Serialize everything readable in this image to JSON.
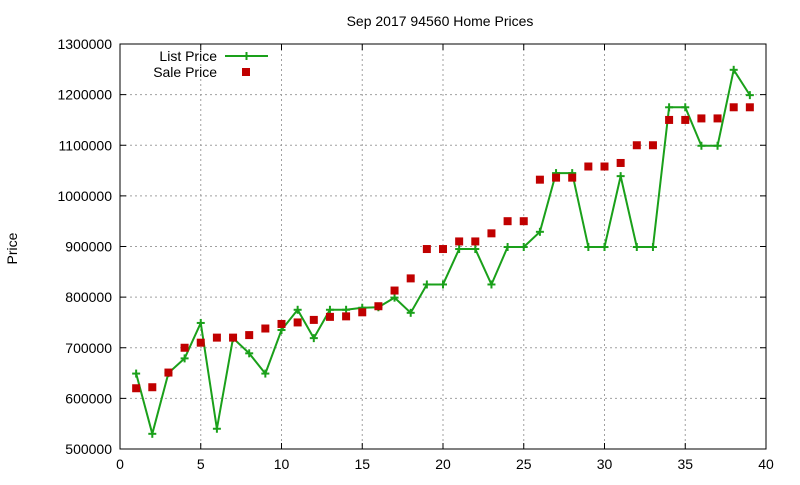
{
  "chart_data": {
    "type": "line",
    "title": "Sep 2017 94560 Home Prices",
    "xlabel": "",
    "ylabel": "Price",
    "xlim": [
      0,
      40
    ],
    "ylim": [
      500000,
      1300000
    ],
    "xticks": [
      "0",
      "5",
      "10",
      "15",
      "20",
      "25",
      "30",
      "35",
      "40"
    ],
    "yticks": [
      "500000",
      "600000",
      "700000",
      "800000",
      "900000",
      "1000000",
      "1100000",
      "1200000",
      "1300000"
    ],
    "grid": true,
    "legend_position": "top-left",
    "series": [
      {
        "name": "List Price",
        "style": "line-plus",
        "color": "#1aa01a",
        "x": [
          1,
          2,
          3,
          4,
          5,
          6,
          7,
          8,
          9,
          10,
          11,
          12,
          13,
          14,
          15,
          16,
          17,
          18,
          19,
          20,
          21,
          22,
          23,
          24,
          25,
          26,
          27,
          28,
          29,
          30,
          31,
          32,
          33,
          34,
          35,
          36,
          37,
          38,
          39
        ],
        "values": [
          649000,
          530000,
          650000,
          679000,
          749000,
          540000,
          719000,
          689000,
          649000,
          735000,
          775000,
          719000,
          775000,
          775000,
          779000,
          780000,
          799000,
          769000,
          825000,
          825000,
          895000,
          895000,
          825000,
          899000,
          899000,
          929000,
          1045000,
          1045000,
          899000,
          899000,
          1039000,
          899000,
          899000,
          1175000,
          1175000,
          1099000,
          1099000,
          1249000,
          1199000
        ]
      },
      {
        "name": "Sale Price",
        "style": "square",
        "color": "#c00000",
        "x": [
          1,
          2,
          3,
          4,
          5,
          6,
          7,
          8,
          9,
          10,
          11,
          12,
          13,
          14,
          15,
          16,
          17,
          18,
          19,
          20,
          21,
          22,
          23,
          24,
          25,
          26,
          27,
          28,
          29,
          30,
          31,
          32,
          33,
          34,
          35,
          36,
          37,
          38,
          39
        ],
        "values": [
          620000,
          622000,
          651000,
          700000,
          710000,
          720000,
          720000,
          725000,
          738000,
          747000,
          750000,
          755000,
          761000,
          762000,
          770000,
          782000,
          813000,
          837000,
          895000,
          895000,
          910000,
          910000,
          926000,
          950000,
          950000,
          1032000,
          1036000,
          1036000,
          1058000,
          1058000,
          1065000,
          1100000,
          1100000,
          1150000,
          1150000,
          1153000,
          1153000,
          1175000,
          1175000
        ]
      }
    ]
  }
}
